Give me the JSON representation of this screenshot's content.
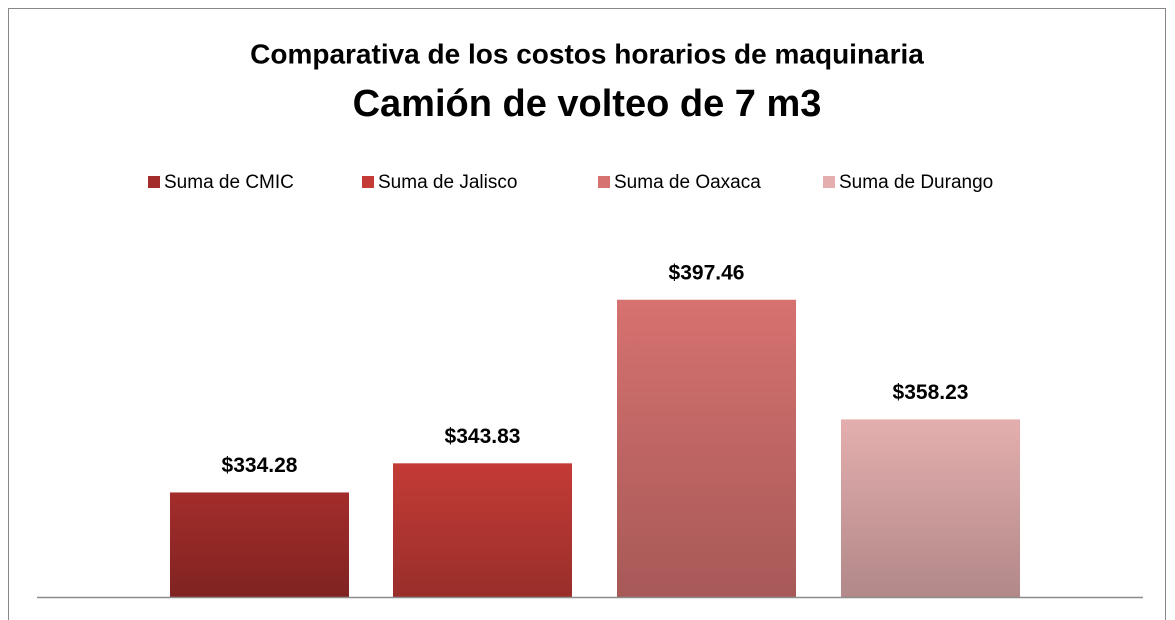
{
  "chart_data": {
    "type": "bar",
    "title": "Comparativa de los costos horarios de maquinaria",
    "subtitle": "Camión de volteo de 7 m3",
    "categories": [
      null
    ],
    "series": [
      {
        "name": "Suma de CMIC",
        "color": "#a32d2b",
        "values": [
          334.28
        ],
        "value_labels": [
          "$334.28"
        ]
      },
      {
        "name": "Suma de Jalisco",
        "color": "#c43b36",
        "values": [
          343.83
        ],
        "value_labels": [
          "$343.83"
        ]
      },
      {
        "name": "Suma de Oaxaca",
        "color": "#d67270",
        "values": [
          397.46
        ],
        "value_labels": [
          "$397.46"
        ]
      },
      {
        "name": "Suma de Durango",
        "color": "#e4aeae",
        "values": [
          358.23
        ],
        "value_labels": [
          "$358.23"
        ]
      }
    ],
    "ylim": [
      300,
      420
    ],
    "legend": "top"
  }
}
